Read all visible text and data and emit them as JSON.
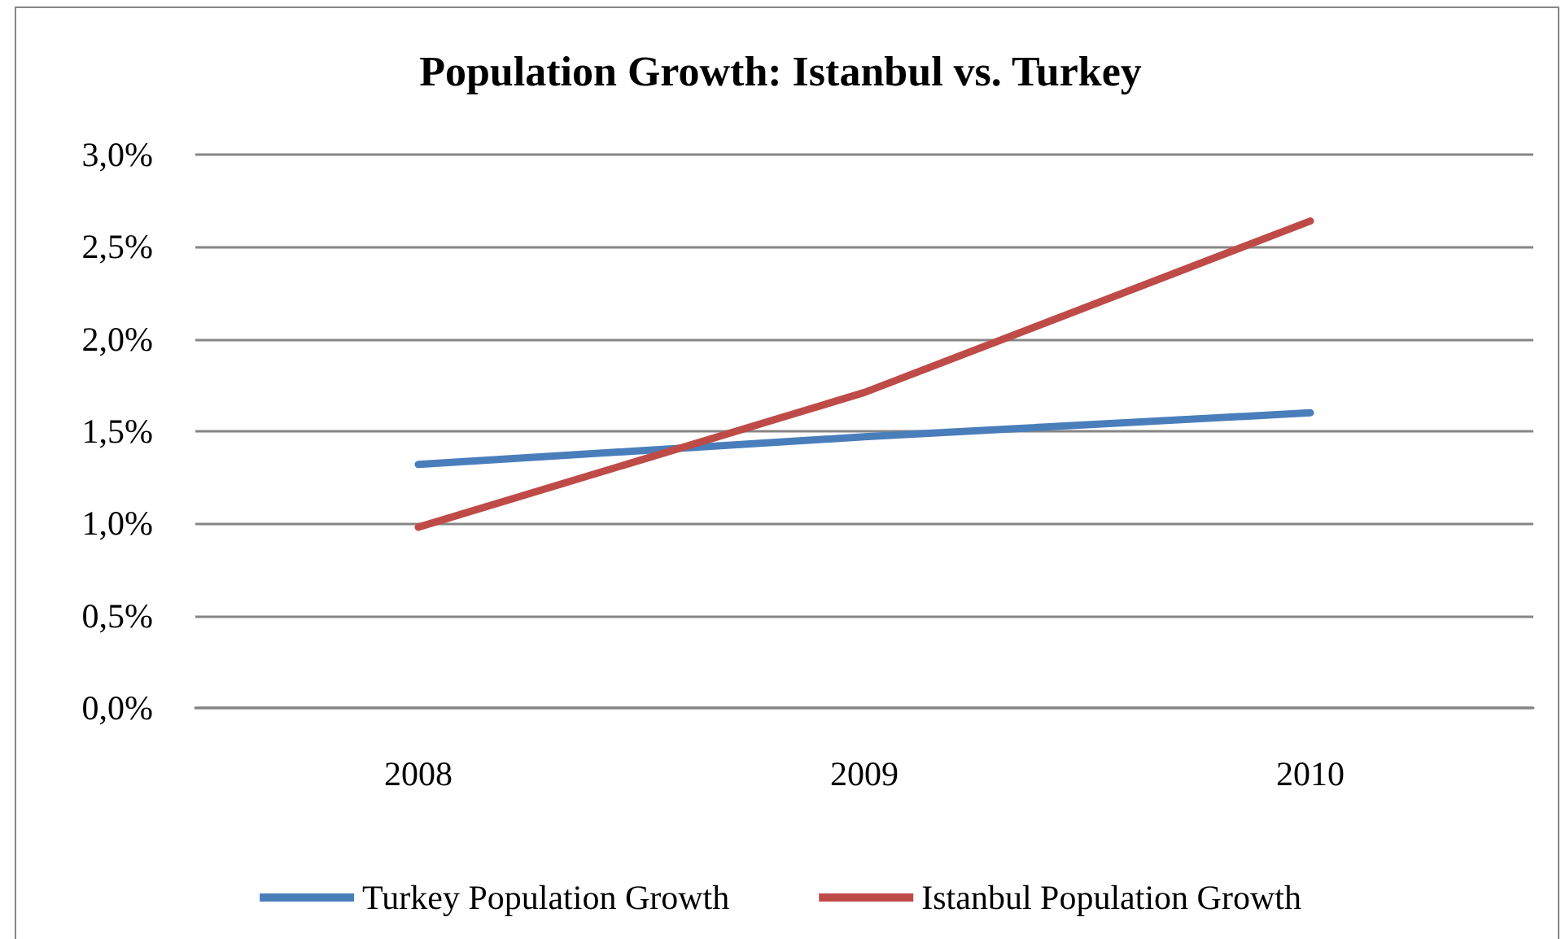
{
  "chart_data": {
    "type": "line",
    "title": "Population Growth: Istanbul vs. Turkey",
    "categories": [
      "2008",
      "2009",
      "2010"
    ],
    "series": [
      {
        "name": "Turkey Population Growth",
        "color": "#4a7ebb",
        "values": [
          1.32,
          1.47,
          1.6
        ]
      },
      {
        "name": "Istanbul Population Growth",
        "color": "#be4b48",
        "values": [
          0.98,
          1.71,
          2.64
        ]
      }
    ],
    "ylim": [
      0,
      3
    ],
    "yticks": [
      {
        "value": 0,
        "label": "0,0%"
      },
      {
        "value": 0.5,
        "label": "0,5%"
      },
      {
        "value": 1,
        "label": "1,0%"
      },
      {
        "value": 1.5,
        "label": "1,5%"
      },
      {
        "value": 2,
        "label": "2,0%"
      },
      {
        "value": 2.5,
        "label": "2,5%"
      },
      {
        "value": 3,
        "label": "3,0%"
      }
    ],
    "grid": "y",
    "legend": "bottom",
    "marker": "none",
    "line_style": "solid"
  }
}
